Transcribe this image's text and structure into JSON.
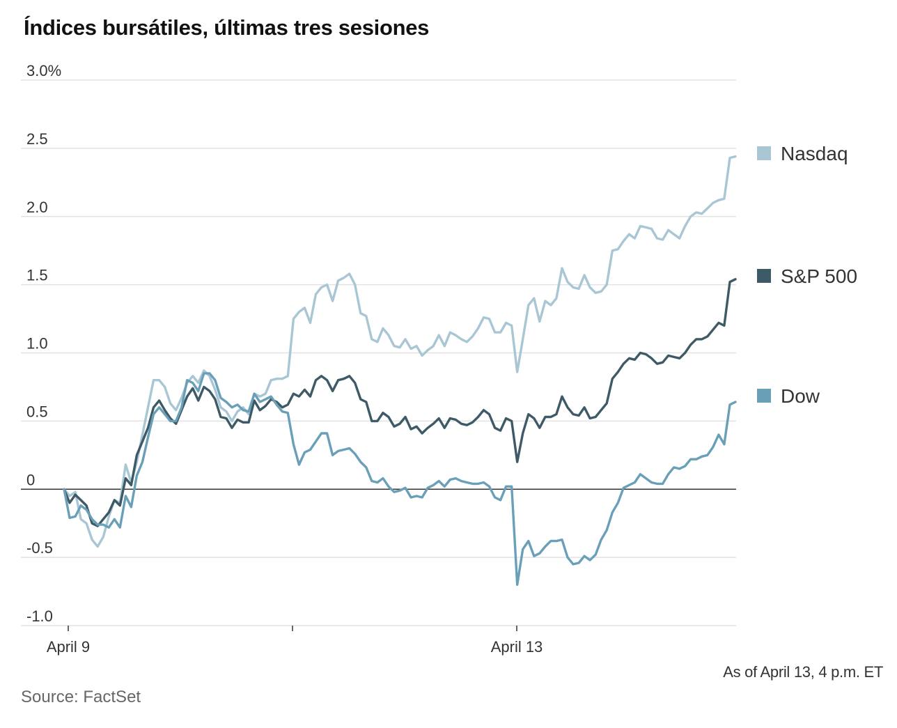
{
  "chart_data": {
    "type": "line",
    "title": "Índices bursátiles, últimas tres sesiones",
    "ylim": [
      -1.0,
      3.0
    ],
    "y_ticks": [
      {
        "value": 3.0,
        "label": "3.0%"
      },
      {
        "value": 2.5,
        "label": "2.5"
      },
      {
        "value": 2.0,
        "label": "2.0"
      },
      {
        "value": 1.5,
        "label": "1.5"
      },
      {
        "value": 1.0,
        "label": "1.0"
      },
      {
        "value": 0.5,
        "label": "0.5"
      },
      {
        "value": 0,
        "label": "0"
      },
      {
        "value": -0.5,
        "label": "-0.5"
      },
      {
        "value": -1.0,
        "label": "-1.0"
      }
    ],
    "x_sessions": 3,
    "x_tick_labels": [
      {
        "session": 0,
        "label": "April 9"
      },
      {
        "session": 2,
        "label": "April 13"
      }
    ],
    "grid": true,
    "legend_position": "right",
    "series": [
      {
        "name": "Nasdaq",
        "color": "#a8c6d3",
        "values": [
          0.0,
          -0.05,
          -0.02,
          -0.22,
          -0.25,
          -0.37,
          -0.42,
          -0.35,
          -0.2,
          -0.08,
          -0.1,
          0.18,
          0.05,
          0.2,
          0.4,
          0.6,
          0.8,
          0.8,
          0.75,
          0.63,
          0.58,
          0.67,
          0.78,
          0.83,
          0.78,
          0.87,
          0.83,
          0.73,
          0.6,
          0.57,
          0.5,
          0.57,
          0.6,
          0.55,
          0.7,
          0.68,
          0.7,
          0.8,
          0.81,
          0.81,
          0.83,
          1.25,
          1.3,
          1.33,
          1.22,
          1.43,
          1.48,
          1.5,
          1.38,
          1.53,
          1.55,
          1.58,
          1.5,
          1.29,
          1.27,
          1.1,
          1.08,
          1.18,
          1.13,
          1.05,
          1.04,
          1.1,
          1.03,
          1.05,
          0.98,
          1.02,
          1.05,
          1.13,
          1.05,
          1.15,
          1.13,
          1.1,
          1.08,
          1.12,
          1.18,
          1.26,
          1.25,
          1.15,
          1.15,
          1.22,
          1.2,
          0.86,
          1.1,
          1.35,
          1.4,
          1.23,
          1.38,
          1.35,
          1.4,
          1.62,
          1.52,
          1.48,
          1.47,
          1.57,
          1.48,
          1.44,
          1.45,
          1.5,
          1.75,
          1.76,
          1.82,
          1.87,
          1.84,
          1.93,
          1.92,
          1.91,
          1.84,
          1.83,
          1.9,
          1.87,
          1.84,
          1.93,
          2.0,
          2.03,
          2.02,
          2.06,
          2.1,
          2.12,
          2.13,
          2.43,
          2.44
        ]
      },
      {
        "name": "S&P 500",
        "color": "#3d5a66",
        "values": [
          0.0,
          -0.1,
          -0.04,
          -0.08,
          -0.12,
          -0.25,
          -0.27,
          -0.22,
          -0.17,
          -0.08,
          -0.12,
          0.08,
          0.03,
          0.25,
          0.35,
          0.45,
          0.6,
          0.65,
          0.58,
          0.52,
          0.48,
          0.58,
          0.68,
          0.74,
          0.65,
          0.75,
          0.72,
          0.66,
          0.53,
          0.52,
          0.45,
          0.51,
          0.49,
          0.49,
          0.65,
          0.58,
          0.61,
          0.66,
          0.64,
          0.6,
          0.62,
          0.7,
          0.68,
          0.73,
          0.68,
          0.8,
          0.83,
          0.8,
          0.72,
          0.8,
          0.81,
          0.83,
          0.78,
          0.66,
          0.64,
          0.5,
          0.5,
          0.56,
          0.53,
          0.46,
          0.48,
          0.53,
          0.44,
          0.46,
          0.41,
          0.45,
          0.48,
          0.52,
          0.45,
          0.52,
          0.51,
          0.48,
          0.47,
          0.49,
          0.53,
          0.58,
          0.55,
          0.45,
          0.43,
          0.52,
          0.5,
          0.2,
          0.41,
          0.55,
          0.52,
          0.45,
          0.53,
          0.53,
          0.55,
          0.68,
          0.6,
          0.55,
          0.54,
          0.6,
          0.52,
          0.53,
          0.58,
          0.63,
          0.81,
          0.86,
          0.92,
          0.96,
          0.95,
          1.0,
          0.99,
          0.96,
          0.92,
          0.93,
          0.98,
          0.97,
          0.96,
          1.0,
          1.06,
          1.1,
          1.1,
          1.12,
          1.17,
          1.22,
          1.2,
          1.52,
          1.54
        ]
      },
      {
        "name": "Dow",
        "color": "#6a9fb8",
        "values": [
          0.0,
          -0.21,
          -0.2,
          -0.12,
          -0.15,
          -0.22,
          -0.26,
          -0.26,
          -0.28,
          -0.22,
          -0.28,
          -0.05,
          -0.13,
          0.1,
          0.2,
          0.38,
          0.55,
          0.6,
          0.55,
          0.5,
          0.5,
          0.6,
          0.8,
          0.78,
          0.72,
          0.85,
          0.85,
          0.8,
          0.67,
          0.64,
          0.6,
          0.62,
          0.58,
          0.57,
          0.7,
          0.64,
          0.66,
          0.68,
          0.62,
          0.57,
          0.56,
          0.33,
          0.18,
          0.27,
          0.29,
          0.35,
          0.41,
          0.41,
          0.25,
          0.28,
          0.29,
          0.3,
          0.26,
          0.2,
          0.16,
          0.06,
          0.05,
          0.08,
          0.02,
          -0.02,
          -0.01,
          0.01,
          -0.06,
          -0.05,
          -0.06,
          0.01,
          0.03,
          0.06,
          0.02,
          0.07,
          0.08,
          0.06,
          0.05,
          0.04,
          0.04,
          0.05,
          0.02,
          -0.06,
          -0.08,
          0.02,
          0.02,
          -0.7,
          -0.44,
          -0.38,
          -0.49,
          -0.47,
          -0.42,
          -0.38,
          -0.38,
          -0.37,
          -0.5,
          -0.55,
          -0.54,
          -0.49,
          -0.52,
          -0.48,
          -0.37,
          -0.3,
          -0.17,
          -0.1,
          0.01,
          0.03,
          0.05,
          0.11,
          0.08,
          0.05,
          0.04,
          0.04,
          0.11,
          0.16,
          0.15,
          0.17,
          0.22,
          0.22,
          0.24,
          0.25,
          0.31,
          0.4,
          0.33,
          0.62,
          0.64
        ]
      }
    ]
  },
  "note": "As of April 13, 4 p.m. ET",
  "source": "Source: FactSet"
}
